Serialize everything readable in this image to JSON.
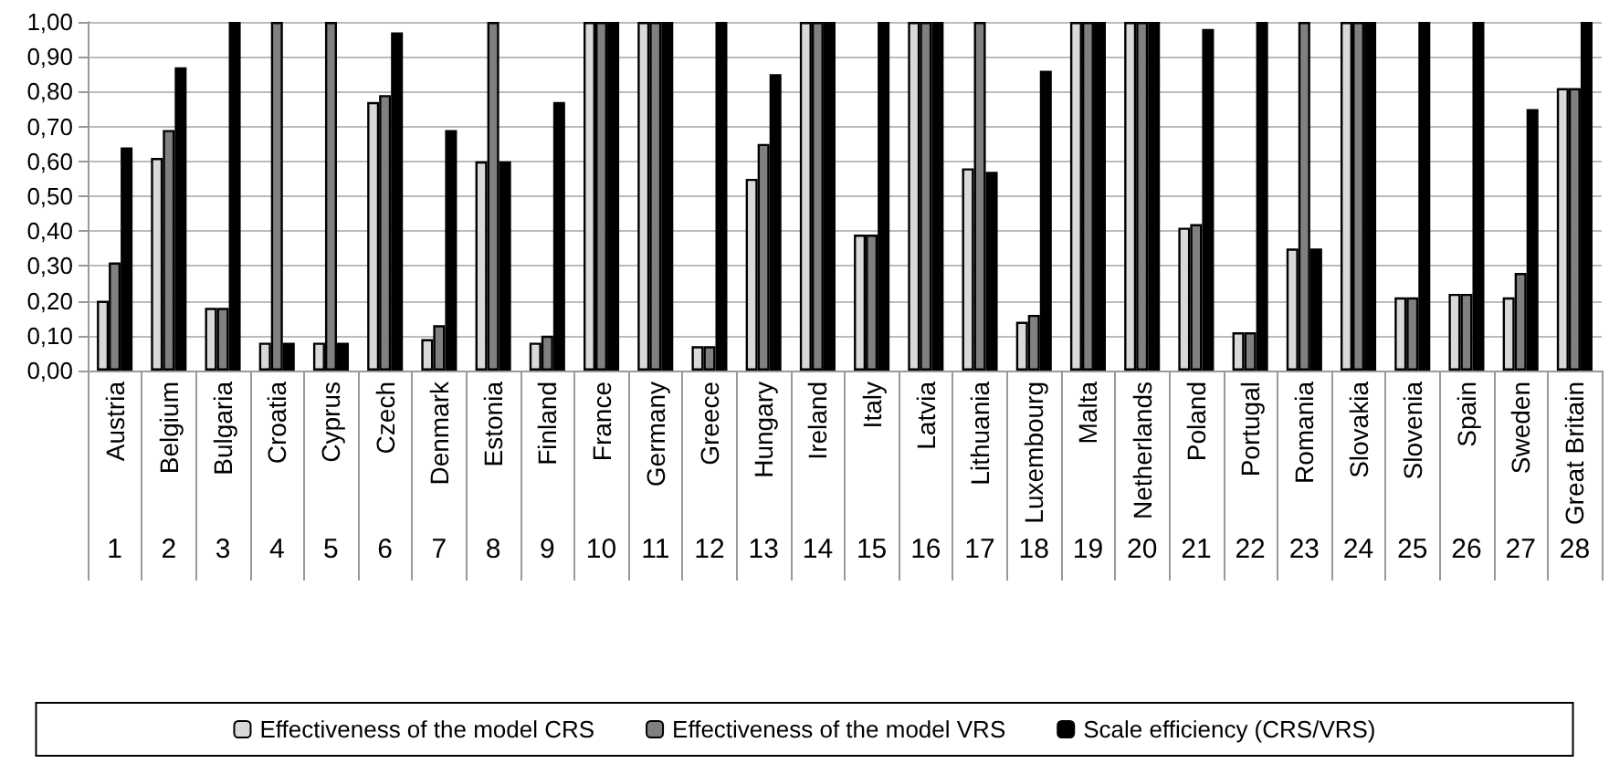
{
  "chart_data": {
    "type": "bar",
    "categories": [
      "Austria",
      "Belgium",
      "Bulgaria",
      "Croatia",
      "Cyprus",
      "Czech",
      "Denmark",
      "Estonia",
      "Finland",
      "France",
      "Germany",
      "Greece",
      "Hungary",
      "Ireland",
      "Italy",
      "Latvia",
      "Lithuania",
      "Luxembourg",
      "Malta",
      "Netherlands",
      "Poland",
      "Portugal",
      "Romania",
      "Slovakia",
      "Slovenia",
      "Spain",
      "Sweden",
      "Great Britain"
    ],
    "series": [
      {
        "name": "Effectiveness of the model CRS",
        "color": "#d9d9d9",
        "values": [
          0.2,
          0.61,
          0.18,
          0.08,
          0.08,
          0.77,
          0.09,
          0.6,
          0.08,
          1.0,
          1.0,
          0.07,
          0.55,
          1.0,
          0.39,
          1.0,
          0.58,
          0.14,
          1.0,
          1.0,
          0.41,
          0.11,
          0.35,
          1.0,
          0.21,
          0.22,
          0.21,
          0.81
        ]
      },
      {
        "name": "Effectiveness of the model VRS",
        "color": "#808080",
        "values": [
          0.31,
          0.69,
          0.18,
          1.0,
          1.0,
          0.79,
          0.13,
          1.0,
          0.1,
          1.0,
          1.0,
          0.07,
          0.65,
          1.0,
          0.39,
          1.0,
          1.0,
          0.16,
          1.0,
          1.0,
          0.42,
          0.11,
          1.0,
          1.0,
          0.21,
          0.22,
          0.28,
          0.81
        ]
      },
      {
        "name": "Scale efficiency (CRS/VRS)",
        "color": "#000000",
        "values": [
          0.64,
          0.87,
          1.0,
          0.08,
          0.08,
          0.97,
          0.69,
          0.6,
          0.77,
          1.0,
          1.0,
          1.0,
          0.85,
          1.0,
          1.0,
          1.0,
          0.57,
          0.86,
          1.0,
          1.0,
          0.98,
          1.0,
          0.35,
          1.0,
          1.0,
          1.0,
          0.75,
          1.0
        ]
      }
    ],
    "ylim": [
      0,
      1
    ],
    "yticks": [
      {
        "value": 0,
        "label": "0,00"
      },
      {
        "value": 0.1,
        "label": "0,10"
      },
      {
        "value": 0.2,
        "label": "0,20"
      },
      {
        "value": 0.3,
        "label": "0,30"
      },
      {
        "value": 0.4,
        "label": "0,40"
      },
      {
        "value": 0.5,
        "label": "0,50"
      },
      {
        "value": 0.6,
        "label": "0,60"
      },
      {
        "value": 0.7,
        "label": "0,70"
      },
      {
        "value": 0.8,
        "label": "0,80"
      },
      {
        "value": 0.9,
        "label": "0,90"
      },
      {
        "value": 1,
        "label": "1,00"
      }
    ],
    "annotations": [
      "1",
      "2",
      "3",
      "4",
      "5",
      "6",
      "7",
      "8",
      "9",
      "10",
      "11",
      "12",
      "13",
      "14",
      "15",
      "16",
      "17",
      "18",
      "19",
      "20",
      "21",
      "22",
      "23",
      "24",
      "25",
      "26",
      "27",
      "28"
    ],
    "grid": "y",
    "legend": "bottom"
  }
}
